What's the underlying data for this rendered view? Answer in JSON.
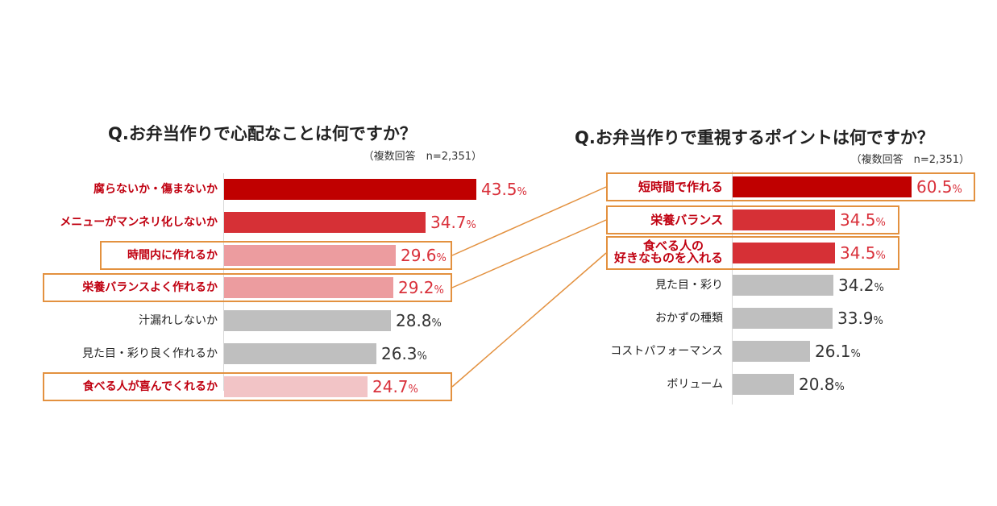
{
  "colors": {
    "dark_red": "#c00000",
    "mid_red": "#d63036",
    "pink": "#ec9c9f",
    "light_pink": "#f2c4c6",
    "gray": "#bfbfbf",
    "highlight_text": "#c00010",
    "value_red": "#d9303a",
    "frame_orange": "#e3913f"
  },
  "chart_data": [
    {
      "type": "bar",
      "orientation": "horizontal",
      "title": "Q.お弁当作りで心配なことは何ですか？",
      "subtitle": "（複数回答　n=2,351）",
      "unit": "%",
      "xlim": [
        0,
        60
      ],
      "categories": [
        "腐らないか・傷まないか",
        "メニューがマンネリ化しないか",
        "時間内に作れるか",
        "栄養バランスよく作れるか",
        "汁漏れしないか",
        "見た目・彩り良く作れるか",
        "食べる人が喜んでくれるか"
      ],
      "values": [
        43.5,
        34.7,
        29.6,
        29.2,
        28.8,
        26.3,
        24.7
      ],
      "value_labels": [
        "43.5",
        "34.7",
        "29.6",
        "29.2",
        "28.8",
        "26.3",
        "24.7"
      ],
      "pct_sign": "%",
      "bar_colors": [
        "dark_red",
        "mid_red",
        "pink",
        "pink",
        "gray",
        "gray",
        "light_pink"
      ],
      "label_highlight": [
        true,
        true,
        true,
        true,
        false,
        false,
        true
      ],
      "framed": [
        false,
        false,
        true,
        true,
        false,
        false,
        true
      ]
    },
    {
      "type": "bar",
      "orientation": "horizontal",
      "title": "Q.お弁当作りで重視するポイントは何ですか？",
      "subtitle": "（複数回答　n=2,351）",
      "unit": "%",
      "xlim": [
        0,
        60.5
      ],
      "categories": [
        "短時間で作れる",
        "栄養バランス",
        "食べる人の好きなものを入れる",
        "見た目・彩り",
        "おかずの種類",
        "コストパフォーマンス",
        "ボリューム"
      ],
      "category_lines": [
        [
          "短時間で作れる"
        ],
        [
          "栄養バランス"
        ],
        [
          "食べる人の",
          "好きなものを入れる"
        ],
        [
          "見た目・彩り"
        ],
        [
          "おかずの種類"
        ],
        [
          "コストパフォーマンス"
        ],
        [
          "ボリューム"
        ]
      ],
      "values": [
        60.5,
        34.5,
        34.5,
        34.2,
        33.9,
        26.1,
        20.8
      ],
      "value_labels": [
        "60.5",
        "34.5",
        "34.5",
        "34.2",
        "33.9",
        "26.1",
        "20.8"
      ],
      "pct_sign": "%",
      "bar_colors": [
        "dark_red",
        "mid_red",
        "mid_red",
        "gray",
        "gray",
        "gray",
        "gray"
      ],
      "label_highlight": [
        true,
        true,
        true,
        false,
        false,
        false,
        false
      ],
      "framed": [
        true,
        true,
        true,
        false,
        false,
        false,
        false
      ]
    }
  ],
  "connectors": [
    {
      "from_chart": 0,
      "from_row": 2,
      "to_chart": 1,
      "to_row": 0
    },
    {
      "from_chart": 0,
      "from_row": 3,
      "to_chart": 1,
      "to_row": 1
    },
    {
      "from_chart": 0,
      "from_row": 6,
      "to_chart": 1,
      "to_row": 2
    }
  ]
}
